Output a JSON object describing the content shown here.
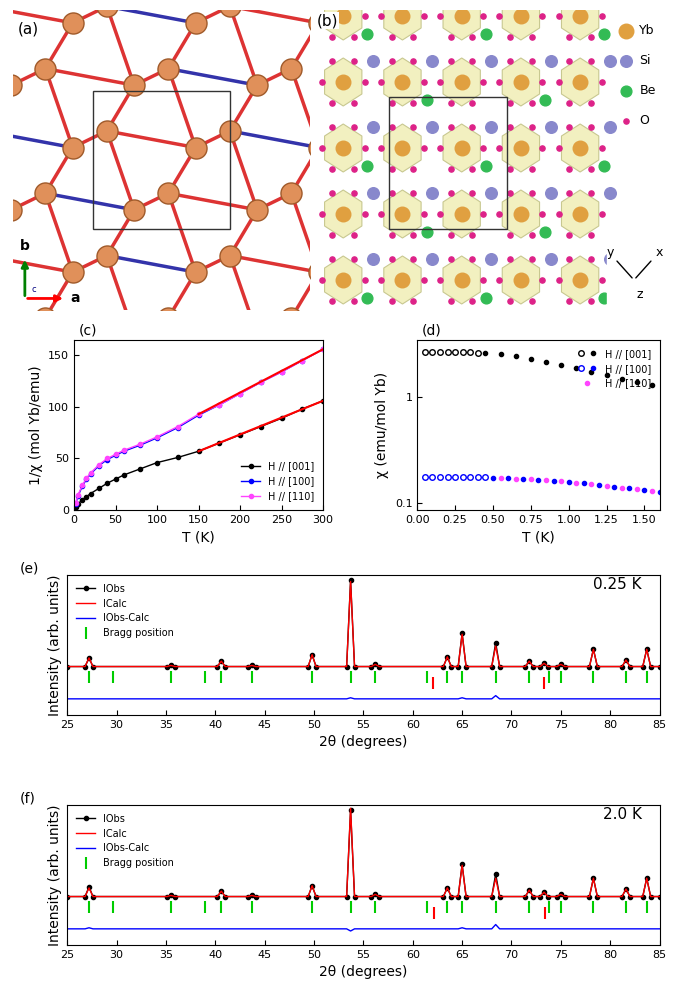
{
  "chart_data": [
    {
      "type": "line",
      "annotations": [
        "(c)"
      ],
      "x_label": "T (K)",
      "y_label": "1/χ (mol Yb/emu)",
      "x": [
        2,
        5,
        10,
        15,
        20,
        30,
        40,
        50,
        60,
        80,
        100,
        125,
        150,
        175,
        200,
        225,
        250,
        275,
        300
      ],
      "series": [
        {
          "name": "H // [001]",
          "color": "#000000",
          "marker": "circle",
          "values": [
            3,
            6,
            10,
            13,
            16,
            21,
            26,
            30,
            34,
            40,
            46,
            51,
            57,
            65,
            73,
            81,
            89,
            98,
            106
          ]
        },
        {
          "name": "H // [100]",
          "color": "#0000ff",
          "marker": "circle",
          "values": [
            6,
            14,
            23,
            30,
            35,
            43,
            49,
            53,
            57,
            63,
            70,
            80,
            92,
            102,
            113,
            124,
            134,
            145,
            156
          ]
        },
        {
          "name": "H // [110]",
          "color": "#ff44ff",
          "marker": "circle",
          "values": [
            7,
            15,
            24,
            31,
            36,
            44,
            50,
            54,
            58,
            64,
            71,
            81,
            93,
            102,
            113,
            124,
            134,
            145,
            156
          ]
        }
      ],
      "fits": [
        {
          "color": "#ff0000",
          "x": [
            150,
            300
          ],
          "values": [
            57,
            106
          ]
        },
        {
          "color": "#ff0000",
          "x": [
            150,
            300
          ],
          "values": [
            93,
            156
          ]
        }
      ],
      "xlim": [
        0,
        300
      ],
      "xticks": [
        0,
        50,
        100,
        150,
        200,
        250,
        300
      ],
      "ylim": [
        0,
        165
      ],
      "yticks": [
        0,
        50,
        100,
        150
      ],
      "legend": "lower right"
    },
    {
      "type": "scatter",
      "annotations": [
        "(d)"
      ],
      "x_label": "T (K)",
      "y_label": "χ (emu/mol Yb)",
      "log": "y",
      "series": [
        {
          "name": "H // [001]",
          "color": "#000000",
          "marker": "open_circle",
          "x": [
            0.05,
            0.1,
            0.15,
            0.2,
            0.25,
            0.3,
            0.35,
            0.4
          ],
          "values": [
            2.7,
            2.7,
            2.7,
            2.7,
            2.7,
            2.7,
            2.68,
            2.66
          ]
        },
        {
          "name": "H // [001]",
          "color": "#000000",
          "marker": "circle",
          "x": [
            0.45,
            0.55,
            0.65,
            0.75,
            0.85,
            0.95,
            1.05,
            1.15,
            1.25,
            1.35,
            1.45,
            1.55
          ],
          "values": [
            2.62,
            2.55,
            2.45,
            2.32,
            2.18,
            2.02,
            1.88,
            1.74,
            1.62,
            1.5,
            1.4,
            1.3
          ]
        },
        {
          "name": "H // [100]",
          "color": "#0000ff",
          "marker": "open_circle",
          "x": [
            0.05,
            0.1,
            0.15,
            0.2,
            0.25,
            0.3,
            0.35,
            0.4,
            0.45
          ],
          "values": [
            0.176,
            0.176,
            0.176,
            0.176,
            0.176,
            0.175,
            0.175,
            0.175,
            0.174
          ]
        },
        {
          "name": "H // [100]",
          "color": "#0000ff",
          "marker": "circle",
          "x": [
            0.5,
            0.6,
            0.7,
            0.8,
            0.9,
            1.0,
            1.1,
            1.2,
            1.3,
            1.4,
            1.5,
            1.6
          ],
          "values": [
            0.173,
            0.171,
            0.168,
            0.165,
            0.161,
            0.157,
            0.152,
            0.147,
            0.142,
            0.137,
            0.132,
            0.127
          ]
        },
        {
          "name": "H // [110]",
          "color": "#ff44ff",
          "marker": "circle",
          "x": [
            0.55,
            0.65,
            0.75,
            0.85,
            0.95,
            1.05,
            1.15,
            1.25,
            1.35,
            1.45,
            1.55
          ],
          "values": [
            0.172,
            0.169,
            0.166,
            0.163,
            0.159,
            0.154,
            0.149,
            0.144,
            0.139,
            0.134,
            0.129
          ]
        }
      ],
      "xlim": [
        0,
        1.6
      ],
      "xticks": [
        {
          "value": 0,
          "label": "0.00"
        },
        {
          "value": 0.25,
          "label": "0.25"
        },
        {
          "value": 0.5,
          "label": "0.50"
        },
        {
          "value": 0.75,
          "label": "0.75"
        },
        {
          "value": 1.0,
          "label": "1.00"
        },
        {
          "value": 1.25,
          "label": "1.25"
        },
        {
          "value": 1.5,
          "label": "1.50"
        }
      ],
      "ylim": [
        0.085,
        3.5
      ],
      "yticks": [
        0.1,
        1
      ],
      "legend": "upper right"
    },
    {
      "type": "line",
      "annotations": [
        "(e)",
        "0.25 K"
      ],
      "x_label": "2θ (degrees)",
      "y_label": "Intensity (arb. units)",
      "tick_labels": "x",
      "x": [
        25,
        26.8,
        27.2,
        27.6,
        35.1,
        35.5,
        35.9,
        40.2,
        40.6,
        41.0,
        43.3,
        43.7,
        44.1,
        49.4,
        49.8,
        50.2,
        53.3,
        53.7,
        54.1,
        55.8,
        56.2,
        56.6,
        63.1,
        63.5,
        63.9,
        64.6,
        65.0,
        65.4,
        68.0,
        68.4,
        68.8,
        71.4,
        71.8,
        72.2,
        72.9,
        73.3,
        73.7,
        74.6,
        75.0,
        75.4,
        77.9,
        78.3,
        78.7,
        81.2,
        81.6,
        82.0,
        83.3,
        83.7,
        84.1,
        85
      ],
      "series": [
        {
          "name": "IObs",
          "color": "#000000",
          "marker": "circle",
          "values": [
            15,
            15,
            23,
            15,
            15,
            16,
            15,
            15,
            20,
            15,
            15,
            16,
            15,
            15,
            26,
            15,
            15,
            95,
            15,
            15,
            17,
            15,
            15,
            24,
            15,
            15,
            46,
            15,
            15,
            37,
            15,
            15,
            20,
            15,
            15,
            18,
            15,
            15,
            17,
            15,
            15,
            31,
            15,
            15,
            21,
            15,
            15,
            31,
            15,
            15
          ]
        },
        {
          "name": "ICalc",
          "color": "#ff0000",
          "values": [
            15,
            15,
            23,
            15,
            15,
            16,
            15,
            15,
            20,
            15,
            15,
            16,
            15,
            15,
            26,
            15,
            15,
            94,
            15,
            15,
            17,
            15,
            15,
            24,
            15,
            15,
            45,
            15,
            15,
            34,
            15,
            15,
            20,
            15,
            15,
            18,
            15,
            15,
            17,
            15,
            15,
            31,
            15,
            15,
            21,
            15,
            15,
            31,
            15,
            15
          ]
        },
        {
          "name": "IObs-Calc",
          "color": "#0000ff",
          "values": [
            -15,
            -15,
            -15,
            -15,
            -15,
            -15,
            -15,
            -15,
            -15,
            -15,
            -15,
            -15,
            -15,
            -15,
            -15,
            -15,
            -15,
            -14,
            -15,
            -15,
            -15,
            -15,
            -15,
            -15,
            -15,
            -15,
            -14,
            -15,
            -15,
            -12,
            -15,
            -15,
            -15,
            -15,
            -15,
            -15,
            -15,
            -15,
            -15,
            -15,
            -15,
            -15,
            -15,
            -15,
            -15,
            -15,
            -15,
            -15,
            -15,
            -15
          ]
        }
      ],
      "bragg": [
        {
          "name": "Bragg position",
          "color": "#00cc00",
          "level": 5,
          "positions": [
            27.2,
            29.6,
            35.5,
            38.9,
            40.6,
            43.7,
            49.8,
            53.7,
            56.2,
            61.4,
            63.5,
            65.0,
            68.4,
            71.8,
            73.8,
            75.0,
            78.3,
            81.6,
            83.7
          ]
        },
        {
          "color": "#ff0000",
          "level": 0,
          "positions": [
            62.0,
            73.3
          ]
        }
      ],
      "xlim": [
        25,
        85
      ],
      "xticks": [
        25,
        30,
        35,
        40,
        45,
        50,
        55,
        60,
        65,
        70,
        75,
        80,
        85
      ],
      "ylim": [
        -30,
        100
      ],
      "legend": "upper left"
    },
    {
      "type": "line",
      "annotations": [
        "(f)",
        "2.0 K"
      ],
      "x_label": "2θ (degrees)",
      "y_label": "Intensity (arb. units)",
      "tick_labels": "x",
      "x": [
        25,
        26.8,
        27.2,
        27.6,
        35.1,
        35.5,
        35.9,
        40.2,
        40.6,
        41.0,
        43.3,
        43.7,
        44.1,
        49.4,
        49.8,
        50.2,
        53.3,
        53.7,
        54.1,
        55.8,
        56.2,
        56.6,
        63.1,
        63.5,
        63.9,
        64.6,
        65.0,
        65.4,
        68.0,
        68.4,
        68.8,
        71.4,
        71.8,
        72.2,
        72.9,
        73.3,
        73.7,
        74.6,
        75.0,
        75.4,
        77.9,
        78.3,
        78.7,
        81.2,
        81.6,
        82.0,
        83.3,
        83.7,
        84.1,
        85
      ],
      "series": [
        {
          "name": "IObs",
          "color": "#000000",
          "marker": "circle",
          "values": [
            15,
            15,
            24,
            15,
            15,
            16,
            15,
            15,
            20,
            15,
            15,
            16,
            15,
            15,
            25,
            15,
            15,
            95,
            15,
            15,
            17,
            15,
            15,
            23,
            15,
            15,
            45,
            15,
            15,
            36,
            15,
            15,
            21,
            15,
            15,
            19,
            15,
            15,
            17,
            15,
            15,
            32,
            15,
            15,
            22,
            15,
            15,
            32,
            15,
            15
          ]
        },
        {
          "name": "ICalc",
          "color": "#ff0000",
          "values": [
            15,
            15,
            23,
            15,
            15,
            16,
            15,
            15,
            20,
            15,
            15,
            16,
            15,
            15,
            25,
            15,
            15,
            97,
            15,
            15,
            17,
            15,
            15,
            23,
            15,
            15,
            44,
            15,
            15,
            32,
            15,
            15,
            21,
            15,
            15,
            19,
            15,
            15,
            17,
            15,
            15,
            32,
            15,
            15,
            22,
            15,
            15,
            32,
            15,
            15
          ]
        },
        {
          "name": "IObs-Calc",
          "color": "#0000ff",
          "values": [
            -15,
            -15,
            -14,
            -15,
            -15,
            -15,
            -15,
            -15,
            -15,
            -15,
            -15,
            -15,
            -15,
            -15,
            -15,
            -15,
            -15,
            -17,
            -15,
            -15,
            -15,
            -15,
            -15,
            -15,
            -15,
            -15,
            -14,
            -15,
            -15,
            -11,
            -15,
            -15,
            -15,
            -15,
            -15,
            -15,
            -15,
            -15,
            -15,
            -15,
            -15,
            -15,
            -15,
            -15,
            -15,
            -15,
            -15,
            -15,
            -15,
            -15
          ]
        }
      ],
      "bragg": [
        {
          "name": "Bragg position",
          "color": "#00cc00",
          "level": 5,
          "positions": [
            27.2,
            29.6,
            35.5,
            38.9,
            40.6,
            43.7,
            49.8,
            53.7,
            56.2,
            61.4,
            63.5,
            65.0,
            68.4,
            71.8,
            73.8,
            75.0,
            78.3,
            81.6,
            83.7
          ]
        },
        {
          "color": "#ff0000",
          "level": 0,
          "positions": [
            62.1,
            73.4
          ]
        }
      ],
      "xlim": [
        25,
        85
      ],
      "xticks": [
        25,
        30,
        35,
        40,
        45,
        50,
        55,
        60,
        65,
        70,
        75,
        80,
        85
      ],
      "ylim": [
        -30,
        100
      ],
      "legend": "upper left"
    }
  ],
  "diagrams": {
    "a": {
      "label": "(a)",
      "axes": [
        "a",
        "b",
        "c"
      ]
    },
    "b": {
      "label": "(b)",
      "atoms": [
        "Yb",
        "Si",
        "Be",
        "O"
      ],
      "axes": [
        "x",
        "y",
        "z"
      ]
    }
  }
}
